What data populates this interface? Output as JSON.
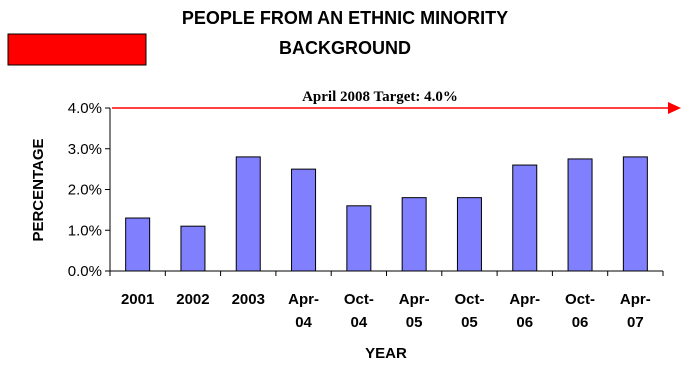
{
  "chart_data": {
    "type": "bar",
    "title_line1": "PEOPLE FROM AN ETHNIC MINORITY",
    "title_line2": "BACKGROUND",
    "xlabel": "YEAR",
    "ylabel": "PERCENTAGE",
    "categories": [
      [
        "2001"
      ],
      [
        "2002"
      ],
      [
        "2003"
      ],
      [
        "Apr-",
        "04"
      ],
      [
        "Oct-",
        "04"
      ],
      [
        "Apr-",
        "05"
      ],
      [
        "Oct-",
        "05"
      ],
      [
        "Apr-",
        "06"
      ],
      [
        "Oct-",
        "06"
      ],
      [
        "Apr-",
        "07"
      ]
    ],
    "values": [
      1.3,
      1.1,
      2.8,
      2.5,
      1.6,
      1.8,
      1.8,
      2.6,
      2.75,
      2.8
    ],
    "ylim": [
      0,
      4
    ],
    "yticks": [
      "0.0%",
      "1.0%",
      "2.0%",
      "3.0%",
      "4.0%"
    ],
    "ytick_values": [
      0,
      1,
      2,
      3,
      4
    ],
    "target": {
      "value": 4.0,
      "label": "April 2008 Target: 4.0%"
    },
    "colors": {
      "bar": "#8080ff",
      "bar_edge": "#000000",
      "target": "#ff0000",
      "swatch": "#ff0000"
    },
    "grid": false
  }
}
